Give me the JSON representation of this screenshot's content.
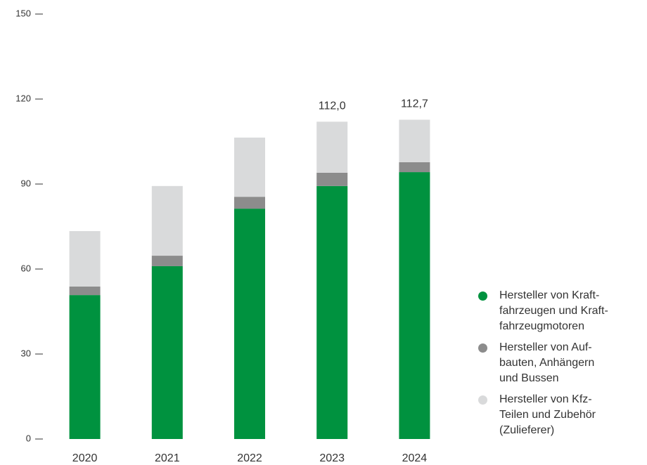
{
  "chart_data": {
    "type": "stacked_bar",
    "categories": [
      "2020",
      "2021",
      "2022",
      "2023",
      "2024"
    ],
    "series": [
      {
        "name": "Hersteller von Kraft-\nfahrzeugen und Kraft-\nfahrzeugmotoren",
        "color": "#00923f",
        "values": [
          50.8,
          61.0,
          81.3,
          89.3,
          94.2
        ]
      },
      {
        "name": "Hersteller von Auf-\nbauten, Anhängern\nund Bussen",
        "color": "#8c8c8c",
        "values": [
          3.0,
          3.7,
          4.2,
          4.7,
          3.5
        ]
      },
      {
        "name": "Hersteller von Kfz-\nTeilen und Zubehör\n(Zulieferer)",
        "color": "#d9dadb",
        "values": [
          19.6,
          24.6,
          20.9,
          18.0,
          15.0
        ]
      }
    ],
    "totals": [
      null,
      null,
      null,
      112.0,
      112.7
    ],
    "total_labels": [
      null,
      null,
      null,
      "112,0",
      "112,7"
    ],
    "ylim": [
      0,
      150
    ],
    "yticks": [
      0,
      30,
      60,
      90,
      120,
      150
    ],
    "legend": "right"
  }
}
